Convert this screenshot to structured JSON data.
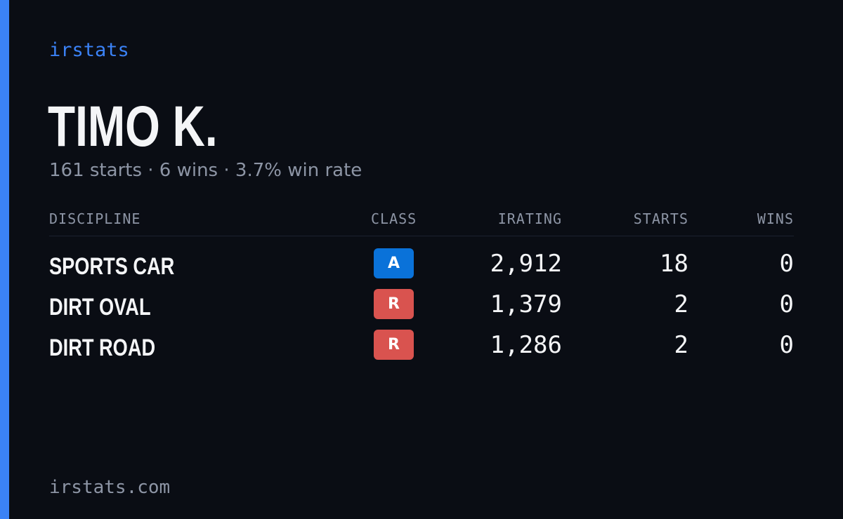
{
  "header": {
    "brand": "irstats",
    "driver_name": "TIMO K.",
    "summary": "161 starts · 6 wins · 3.7% win rate"
  },
  "table": {
    "columns": {
      "discipline": "DISCIPLINE",
      "class": "CLASS",
      "irating": "IRATING",
      "starts": "STARTS",
      "wins": "WINS"
    },
    "rows": [
      {
        "discipline": "SPORTS CAR",
        "class": "A",
        "class_color": "#0a72d9",
        "irating": "2,912",
        "starts": "18",
        "wins": "0"
      },
      {
        "discipline": "DIRT OVAL",
        "class": "R",
        "class_color": "#d9534f",
        "irating": "1,379",
        "starts": "2",
        "wins": "0"
      },
      {
        "discipline": "DIRT ROAD",
        "class": "R",
        "class_color": "#d9534f",
        "irating": "1,286",
        "starts": "2",
        "wins": "0"
      }
    ]
  },
  "footer": {
    "site": "irstats.com"
  },
  "colors": {
    "background": "#0a0d14",
    "accent": "#3b82f6",
    "text_primary": "#f4f5f7",
    "text_muted": "#8d95a5"
  }
}
